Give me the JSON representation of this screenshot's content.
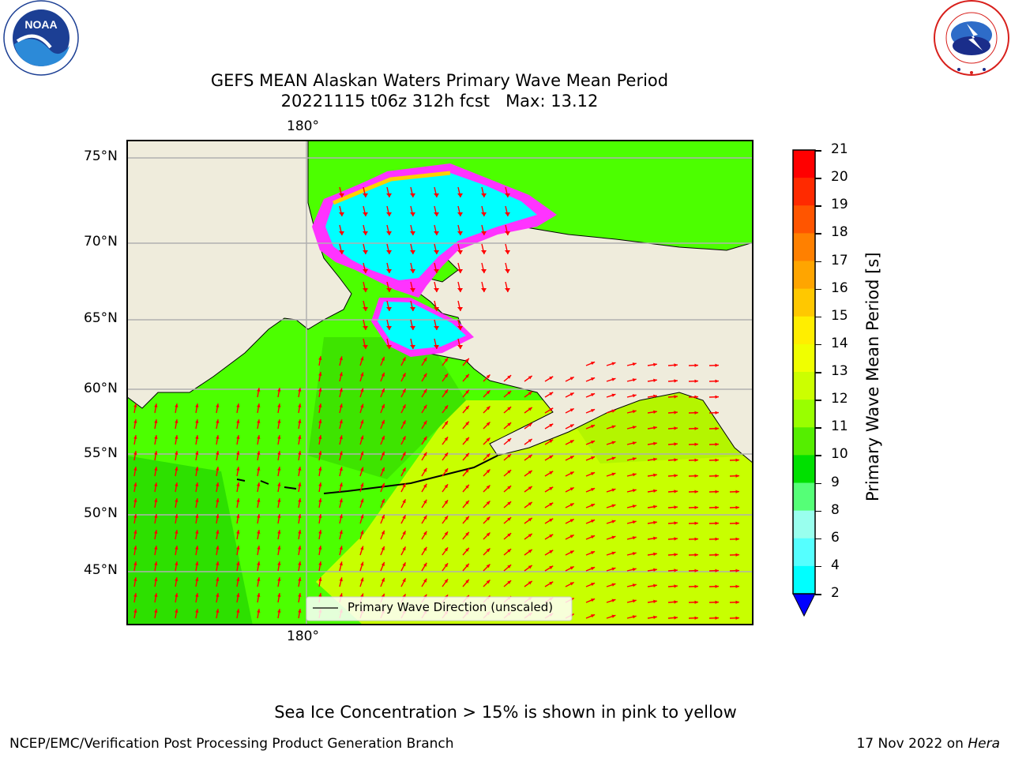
{
  "header": {
    "title_line1": "GEFS MEAN Alaskan Waters Primary Wave Mean Period",
    "title_line2": "20221115 t06z 312h fcst   Max: 13.12"
  },
  "logos": {
    "noaa_text": "NOAA",
    "noaa_ring": "NATIONAL OCEANIC AND ATMOSPHERIC ADMINISTRATION · U.S. DEPARTMENT OF COMMERCE",
    "nws_ring": "NATIONAL WEATHER SERVICE"
  },
  "map": {
    "lon_label_top": "180°",
    "lon_label_bottom": "180°",
    "lat_labels": [
      "75°N",
      "70°N",
      "65°N",
      "60°N",
      "55°N",
      "50°N",
      "45°N"
    ],
    "legend_text": "Primary Wave Direction (unscaled)",
    "colors": {
      "land": "#efecdc",
      "ocean_low": "#4cff00",
      "ocean_mid": "#00e000",
      "ocean_high": "#c8ff00",
      "ice_cyan": "#00ffff",
      "ice_edge_magenta": "#ff00ff",
      "ice_edge_yellow": "#ffd000",
      "arrow": "#ff0000",
      "grid": "#b0b0b0"
    }
  },
  "colorbar": {
    "label": "Primary Wave Mean Period [s]",
    "ticks": [
      "21",
      "20",
      "19",
      "18",
      "17",
      "16",
      "15",
      "14",
      "13",
      "12",
      "11",
      "10",
      "9",
      "8",
      "6",
      "4",
      "2"
    ],
    "colors": [
      "#ff0000",
      "#ff2a00",
      "#ff5500",
      "#ff8000",
      "#ffa500",
      "#ffc800",
      "#ffee00",
      "#f0ff00",
      "#ccff00",
      "#99ff00",
      "#55ee00",
      "#00e000",
      "#55ff77",
      "#99ffee",
      "#55ffff",
      "#00ffff",
      "#00ccff",
      "#0066ff",
      "#0000ff"
    ],
    "extend_color": "#0000ff"
  },
  "notes": {
    "ice": "Sea Ice Concentration > 15% is shown in pink to yellow"
  },
  "footer": {
    "left": "NCEP/EMC/Verification Post Processing Product Generation Branch",
    "right_prefix": "17 Nov 2022 on ",
    "right_machine": "Hera"
  }
}
